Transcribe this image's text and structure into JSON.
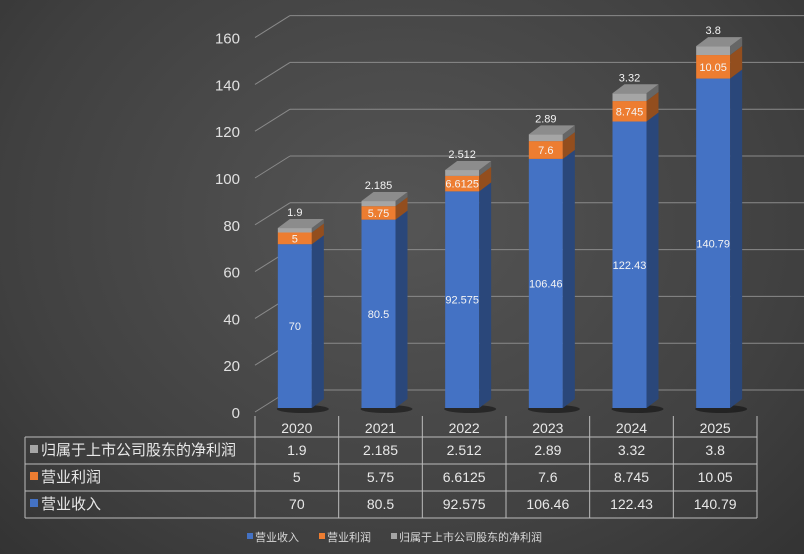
{
  "chart_data": {
    "type": "bar",
    "stacked": true,
    "three_d": true,
    "categories": [
      "2020",
      "2021",
      "2022",
      "2023",
      "2024",
      "2025"
    ],
    "series": [
      {
        "name": "营业收入",
        "color": "#4472c4",
        "values": [
          70,
          80.5,
          92.575,
          106.46,
          122.43,
          140.79
        ]
      },
      {
        "name": "营业利润",
        "color": "#ed7d31",
        "values": [
          5,
          5.75,
          6.6125,
          7.6,
          8.745,
          10.05
        ]
      },
      {
        "name": "归属于上市公司股东的净利润",
        "color": "#a5a5a5",
        "values": [
          1.9,
          2.185,
          2.512,
          2.89,
          3.32,
          3.8
        ]
      }
    ],
    "value_labels": {
      "营业收入": [
        "70",
        "80.5",
        "92.575",
        "106.46",
        "122.43",
        "140.79"
      ],
      "营业利润": [
        "5",
        "5.75",
        "6.6125",
        "7.6",
        "8.745",
        "10.05"
      ],
      "归属于上市公司股东的净利润": [
        "1.9",
        "2.185",
        "2.512",
        "2.89",
        "3.32",
        "3.8"
      ]
    },
    "ylim": [
      0,
      160
    ],
    "yticks": [
      "0",
      "20",
      "40",
      "60",
      "80",
      "100",
      "120",
      "140",
      "160"
    ],
    "grid": true,
    "data_table": true,
    "legend_position": "bottom",
    "background": "#404040"
  }
}
